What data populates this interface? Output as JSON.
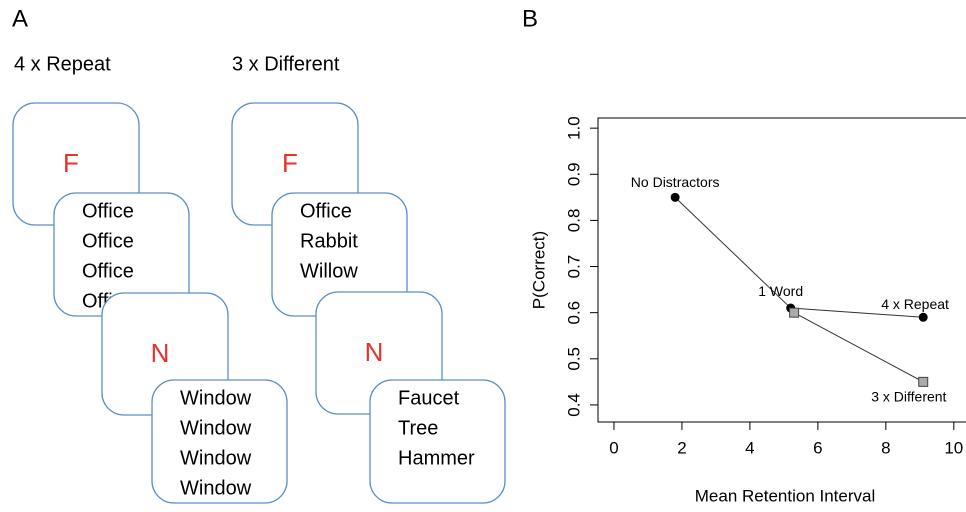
{
  "panel_a": {
    "label": "A",
    "columns": [
      {
        "title": "4 x Repeat",
        "cards": [
          {
            "letter": "F",
            "words": [
              "Office",
              "Office",
              "Office",
              "Office"
            ]
          },
          {
            "letter": "N",
            "words": [
              "Window",
              "Window",
              "Window",
              "Window"
            ]
          }
        ]
      },
      {
        "title": "3 x Different",
        "cards": [
          {
            "letter": "F",
            "words": [
              "Office",
              "Rabbit",
              "Willow"
            ]
          },
          {
            "letter": "N",
            "words": [
              "Faucet",
              "Tree",
              "Hammer"
            ]
          }
        ]
      }
    ]
  },
  "chart_data": {
    "type": "scatter",
    "panel_label": "B",
    "xlabel": "Mean Retention Interval",
    "ylabel": "P(Correct)",
    "xlim": [
      -0.47,
      10.3
    ],
    "ylim": [
      0.363,
      1.022
    ],
    "xticks": [
      0,
      2,
      4,
      6,
      8,
      10
    ],
    "yticks": [
      {
        "value": 0.4,
        "label": "0.4"
      },
      {
        "value": 0.5,
        "label": "0.5"
      },
      {
        "value": 0.6,
        "label": "0.6"
      },
      {
        "value": 0.7,
        "label": "0.7"
      },
      {
        "value": 0.8,
        "label": "0.8"
      },
      {
        "value": 0.9,
        "label": "0.9"
      },
      {
        "value": 1,
        "label": "1.0"
      }
    ],
    "series": [
      {
        "marker": "circle",
        "color": "#000000",
        "labels": [
          "No Distractors",
          "1 Word",
          "4 x Repeat"
        ],
        "x": [
          1.8,
          5.2,
          9.1
        ],
        "values": [
          0.85,
          0.61,
          0.59
        ]
      },
      {
        "marker": "square",
        "color": "#aaaaaa",
        "labels": [
          null,
          "3 x Different"
        ],
        "x": [
          5.3,
          9.1
        ],
        "values": [
          0.6,
          0.45
        ]
      }
    ]
  }
}
